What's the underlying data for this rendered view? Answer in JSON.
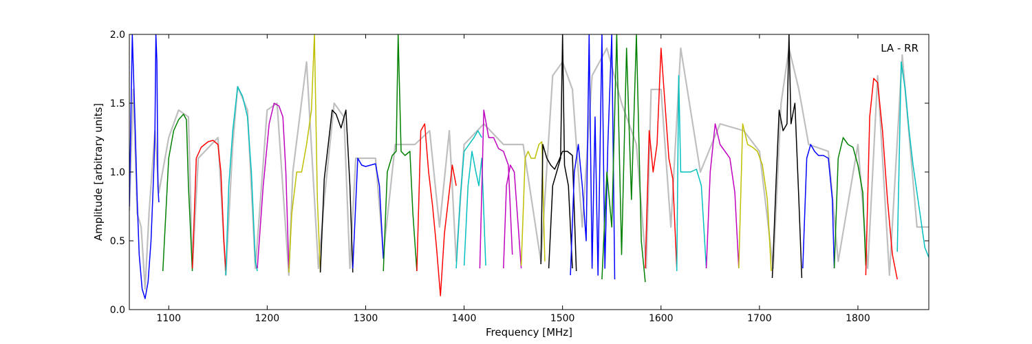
{
  "chart_data": {
    "type": "line",
    "annotation": "LA - RR",
    "xlabel": "Frequency [MHz]",
    "ylabel": "Amplitude [arbitrary units]",
    "xlim": [
      1060,
      1872
    ],
    "ylim": [
      0.0,
      2.0
    ],
    "x_ticks": [
      1100,
      1200,
      1300,
      1400,
      1500,
      1600,
      1700,
      1800
    ],
    "y_ticks": [
      0.0,
      0.5,
      1.0,
      1.5,
      2.0
    ],
    "y_tick_labels": [
      "0.0",
      "0.5",
      "1.0",
      "1.5",
      "2.0"
    ],
    "grid": false,
    "colors": {
      "reference": "#bfbfbf",
      "b": "#0000ff",
      "g": "#008000",
      "r": "#ff0000",
      "c": "#00bfbf",
      "m": "#bf00bf",
      "y": "#bfbf00",
      "k": "#000000"
    },
    "reference_series": {
      "name": "",
      "color": "#bfbfbf",
      "x": [
        1060,
        1064,
        1068,
        1072,
        1076,
        1080,
        1086,
        1090,
        1100,
        1110,
        1120,
        1124,
        1130,
        1150,
        1158,
        1165,
        1170,
        1180,
        1188,
        1200,
        1210,
        1222,
        1226,
        1240,
        1252,
        1258,
        1268,
        1278,
        1284,
        1290,
        1300,
        1310,
        1318,
        1330,
        1350,
        1365,
        1375,
        1385,
        1392,
        1400,
        1420,
        1440,
        1460,
        1478,
        1490,
        1500,
        1510,
        1520,
        1530,
        1545,
        1560,
        1575,
        1585,
        1590,
        1600,
        1610,
        1620,
        1640,
        1660,
        1684,
        1700,
        1714,
        1722,
        1730,
        1740,
        1750,
        1770,
        1780,
        1800,
        1810,
        1820,
        1832,
        1845,
        1860,
        1872
      ],
      "y": [
        0.72,
        1.6,
        0.7,
        0.6,
        0.15,
        0.7,
        1.3,
        0.85,
        1.25,
        1.45,
        1.4,
        0.3,
        1.1,
        1.25,
        0.25,
        1.2,
        1.62,
        1.45,
        0.3,
        1.45,
        1.5,
        0.25,
        1.0,
        1.8,
        0.3,
        0.8,
        1.5,
        1.4,
        0.3,
        1.1,
        1.1,
        1.1,
        0.4,
        1.2,
        1.2,
        1.3,
        0.6,
        1.3,
        0.35,
        1.2,
        1.35,
        1.2,
        1.2,
        0.35,
        1.7,
        1.8,
        1.6,
        0.6,
        1.7,
        1.9,
        1.5,
        1.2,
        0.3,
        1.6,
        1.6,
        0.6,
        1.9,
        1.0,
        1.35,
        1.3,
        1.15,
        0.3,
        1.5,
        1.9,
        1.6,
        1.2,
        1.15,
        0.35,
        1.2,
        0.3,
        1.7,
        0.25,
        1.85,
        0.6,
        0.6
      ]
    },
    "series": [
      {
        "color_key": "b",
        "x": [
          1060,
          1063,
          1066,
          1068,
          1070,
          1073,
          1076,
          1079,
          1082,
          1084,
          1085,
          1086,
          1087,
          1088,
          1089,
          1090
        ],
        "y": [
          0.75,
          2.0,
          1.3,
          0.8,
          0.4,
          0.15,
          0.08,
          0.2,
          0.5,
          0.85,
          1.05,
          1.3,
          2.0,
          1.8,
          0.9,
          0.78
        ]
      },
      {
        "color_key": "g",
        "x": [
          1094,
          1100,
          1105,
          1110,
          1115,
          1118,
          1120,
          1124
        ],
        "y": [
          0.28,
          1.1,
          1.3,
          1.38,
          1.42,
          1.38,
          0.9,
          0.28
        ]
      },
      {
        "color_key": "r",
        "x": [
          1124,
          1128,
          1133,
          1140,
          1145,
          1150,
          1153,
          1156,
          1158
        ],
        "y": [
          0.3,
          1.1,
          1.18,
          1.22,
          1.23,
          1.2,
          1.0,
          0.5,
          0.28
        ]
      },
      {
        "color_key": "c",
        "x": [
          1158,
          1161,
          1165,
          1170,
          1175,
          1180,
          1184,
          1188,
          1190
        ],
        "y": [
          0.25,
          0.9,
          1.3,
          1.62,
          1.55,
          1.4,
          1.0,
          0.35,
          0.28
        ]
      },
      {
        "color_key": "m",
        "x": [
          1190,
          1196,
          1202,
          1207,
          1212,
          1216,
          1219,
          1222
        ],
        "y": [
          0.3,
          0.9,
          1.35,
          1.5,
          1.48,
          1.4,
          1.0,
          0.3
        ]
      },
      {
        "color_key": "y",
        "x": [
          1222,
          1225,
          1230,
          1235,
          1240,
          1245,
          1248,
          1251,
          1254
        ],
        "y": [
          0.27,
          0.7,
          1.0,
          1.0,
          1.2,
          1.45,
          2.0,
          0.8,
          0.27
        ]
      },
      {
        "color_key": "k",
        "x": [
          1254,
          1258,
          1262,
          1266,
          1270,
          1275,
          1280,
          1284,
          1287
        ],
        "y": [
          0.27,
          0.95,
          1.2,
          1.45,
          1.42,
          1.32,
          1.45,
          0.9,
          0.27
        ]
      },
      {
        "color_key": "b",
        "x": [
          1287,
          1292,
          1296,
          1300,
          1305,
          1310,
          1314,
          1318
        ],
        "y": [
          0.3,
          1.1,
          1.05,
          1.04,
          1.05,
          1.06,
          0.9,
          0.37
        ]
      },
      {
        "color_key": "g",
        "x": [
          1318,
          1322,
          1327,
          1331,
          1333,
          1336,
          1340,
          1345,
          1348,
          1352
        ],
        "y": [
          0.28,
          1.0,
          1.12,
          1.15,
          2.0,
          1.15,
          1.12,
          1.15,
          0.7,
          0.28
        ]
      },
      {
        "color_key": "r",
        "x": [
          1352,
          1356,
          1360,
          1364,
          1368,
          1372,
          1376,
          1380,
          1384,
          1388,
          1392
        ],
        "y": [
          0.28,
          1.3,
          1.35,
          1.0,
          0.75,
          0.45,
          0.1,
          0.55,
          0.8,
          1.05,
          0.9
        ]
      },
      {
        "color_key": "c",
        "x": [
          1392,
          1396,
          1400,
          1405,
          1410,
          1414,
          1418
        ],
        "y": [
          0.3,
          0.8,
          1.15,
          1.2,
          1.25,
          1.3,
          1.25
        ]
      },
      {
        "color_key": "c",
        "x": [
          1400,
          1404,
          1408,
          1412,
          1415,
          1418,
          1422
        ],
        "y": [
          0.32,
          0.9,
          1.15,
          1.0,
          0.9,
          1.1,
          0.32
        ]
      },
      {
        "color_key": "m",
        "x": [
          1416,
          1420,
          1425,
          1430,
          1435,
          1440,
          1445,
          1449
        ],
        "y": [
          0.3,
          1.45,
          1.25,
          1.25,
          1.17,
          1.15,
          1.05,
          0.4
        ]
      },
      {
        "color_key": "m",
        "x": [
          1440,
          1443,
          1447,
          1451,
          1455,
          1458
        ],
        "y": [
          0.3,
          0.9,
          1.05,
          1.0,
          0.6,
          0.3
        ]
      },
      {
        "color_key": "y",
        "x": [
          1458,
          1462,
          1465,
          1468,
          1472,
          1476,
          1479,
          1482
        ],
        "y": [
          0.32,
          1.1,
          1.15,
          1.1,
          1.1,
          1.2,
          1.22,
          0.35
        ]
      },
      {
        "color_key": "k",
        "x": [
          1478,
          1480,
          1484,
          1488,
          1492,
          1496,
          1500,
          1505,
          1510,
          1514
        ],
        "y": [
          0.33,
          1.2,
          1.1,
          1.05,
          1.02,
          1.08,
          1.15,
          1.15,
          1.12,
          0.28
        ]
      },
      {
        "color_key": "k",
        "x": [
          1486,
          1490,
          1494,
          1498,
          1500,
          1502,
          1506,
          1510
        ],
        "y": [
          0.3,
          0.9,
          1.0,
          1.1,
          2.0,
          1.05,
          0.9,
          0.3
        ]
      },
      {
        "color_key": "b",
        "x": [
          1508,
          1512,
          1516,
          1520,
          1524,
          1527,
          1530,
          1533,
          1536,
          1540,
          1543,
          1546,
          1550,
          1553
        ],
        "y": [
          0.25,
          1.0,
          1.2,
          0.9,
          0.5,
          2.0,
          0.3,
          1.4,
          0.25,
          2.0,
          0.3,
          1.2,
          2.0,
          0.22
        ]
      },
      {
        "color_key": "g",
        "x": [
          1540,
          1545,
          1550,
          1555,
          1560,
          1565,
          1570,
          1575,
          1580,
          1584
        ],
        "y": [
          0.22,
          1.0,
          0.6,
          2.0,
          0.4,
          1.9,
          0.8,
          2.0,
          0.5,
          0.2
        ]
      },
      {
        "color_key": "r",
        "x": [
          1584,
          1588,
          1592,
          1596,
          1600,
          1604,
          1608,
          1612,
          1616
        ],
        "y": [
          0.3,
          1.3,
          1.0,
          1.2,
          1.9,
          1.5,
          1.1,
          0.95,
          0.3
        ]
      },
      {
        "color_key": "c",
        "x": [
          1616,
          1618,
          1620,
          1624,
          1630,
          1636,
          1641,
          1646
        ],
        "y": [
          0.28,
          1.7,
          1.0,
          1.0,
          1.0,
          1.02,
          0.9,
          0.3
        ]
      },
      {
        "color_key": "m",
        "x": [
          1646,
          1650,
          1655,
          1660,
          1665,
          1670,
          1675,
          1679
        ],
        "y": [
          0.3,
          1.0,
          1.35,
          1.2,
          1.15,
          1.1,
          0.85,
          0.3
        ]
      },
      {
        "color_key": "y",
        "x": [
          1679,
          1683,
          1688,
          1693,
          1698,
          1703,
          1708,
          1712
        ],
        "y": [
          0.3,
          1.35,
          1.2,
          1.18,
          1.15,
          1.05,
          0.8,
          0.28
        ]
      },
      {
        "color_key": "k",
        "x": [
          1713,
          1717,
          1720,
          1724,
          1728,
          1730,
          1732,
          1736,
          1740,
          1743
        ],
        "y": [
          0.23,
          0.95,
          1.45,
          1.3,
          1.35,
          2.0,
          1.35,
          1.5,
          0.8,
          0.23
        ]
      },
      {
        "color_key": "b",
        "x": [
          1744,
          1748,
          1752,
          1756,
          1760,
          1765,
          1770,
          1774,
          1776
        ],
        "y": [
          0.3,
          1.1,
          1.2,
          1.15,
          1.12,
          1.12,
          1.1,
          0.8,
          0.3
        ]
      },
      {
        "color_key": "g",
        "x": [
          1776,
          1780,
          1785,
          1790,
          1795,
          1800,
          1805,
          1808
        ],
        "y": [
          0.3,
          1.1,
          1.25,
          1.2,
          1.18,
          1.05,
          0.85,
          0.32
        ]
      },
      {
        "color_key": "r",
        "x": [
          1808,
          1812,
          1816,
          1820,
          1825,
          1830,
          1835,
          1840
        ],
        "y": [
          0.25,
          1.4,
          1.68,
          1.65,
          1.3,
          0.8,
          0.4,
          0.22
        ]
      },
      {
        "color_key": "c",
        "x": [
          1840,
          1844,
          1848,
          1852,
          1856,
          1862,
          1868,
          1872
        ],
        "y": [
          0.42,
          1.8,
          1.6,
          1.3,
          1.05,
          0.75,
          0.45,
          0.38
        ]
      }
    ]
  }
}
